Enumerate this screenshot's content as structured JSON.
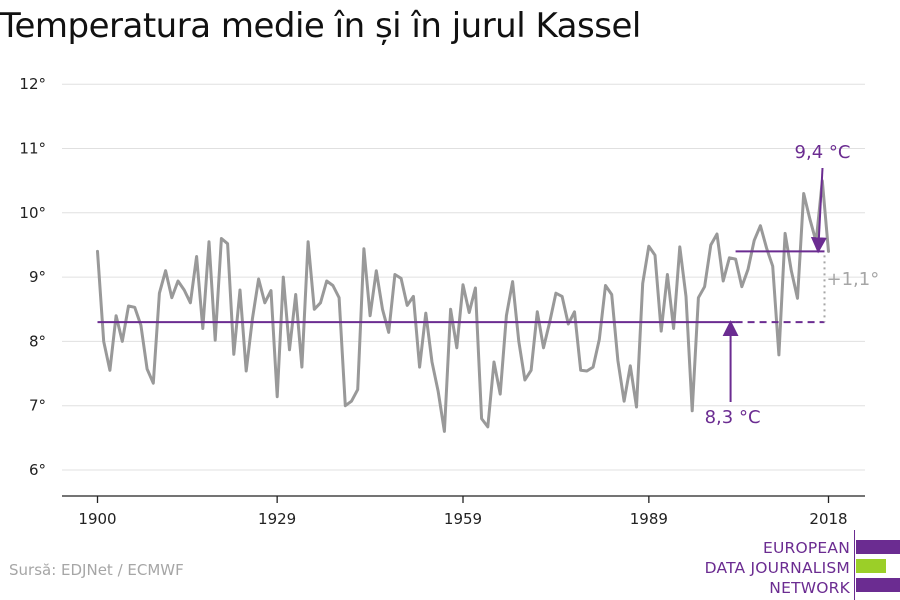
{
  "title": "Temperatura medie în și în jurul Kassel",
  "source": "Sursă: EDJNet / ECMWF",
  "logo": {
    "lines": [
      "EUROPEAN",
      "DATA JOURNALISM",
      "NETWORK"
    ]
  },
  "colors": {
    "series": "#999999",
    "accent": "#6b2c91",
    "diff": "#a6a6a6",
    "grid": "#e0e0e0",
    "logo_purple": "#6b2c91",
    "logo_green": "#9bcf28"
  },
  "chart_data": {
    "type": "line",
    "title": "Temperatura medie în și în jurul Kassel",
    "xlabel": "",
    "ylabel": "",
    "xlim": [
      1900,
      2018
    ],
    "ylim": [
      6,
      12
    ],
    "x_ticks": [
      1900,
      1929,
      1959,
      1989,
      2018
    ],
    "y_ticks": [
      {
        "value": 6,
        "label": "6°"
      },
      {
        "value": 7,
        "label": "7°"
      },
      {
        "value": 8,
        "label": "8°"
      },
      {
        "value": 9,
        "label": "9°"
      },
      {
        "value": 10,
        "label": "10°"
      },
      {
        "value": 11,
        "label": "11°"
      },
      {
        "value": 12,
        "label": "12°"
      }
    ],
    "grid": "horizontal",
    "x": [
      1900,
      1901,
      1902,
      1903,
      1904,
      1905,
      1906,
      1907,
      1908,
      1909,
      1910,
      1911,
      1912,
      1913,
      1914,
      1915,
      1916,
      1917,
      1918,
      1919,
      1920,
      1921,
      1922,
      1923,
      1924,
      1925,
      1926,
      1927,
      1928,
      1929,
      1930,
      1931,
      1932,
      1933,
      1934,
      1935,
      1936,
      1937,
      1938,
      1939,
      1940,
      1941,
      1942,
      1943,
      1944,
      1945,
      1946,
      1947,
      1948,
      1949,
      1950,
      1951,
      1952,
      1953,
      1954,
      1955,
      1956,
      1957,
      1958,
      1959,
      1960,
      1961,
      1962,
      1963,
      1964,
      1965,
      1966,
      1967,
      1968,
      1969,
      1970,
      1971,
      1972,
      1973,
      1974,
      1975,
      1976,
      1977,
      1978,
      1979,
      1980,
      1981,
      1982,
      1983,
      1984,
      1985,
      1986,
      1987,
      1988,
      1989,
      1990,
      1991,
      1992,
      1993,
      1994,
      1995,
      1996,
      1997,
      1998,
      1999,
      2000,
      2001,
      2002,
      2003,
      2004,
      2005,
      2006,
      2007,
      2008,
      2009,
      2010,
      2011,
      2012,
      2013,
      2014,
      2015,
      2016,
      2017,
      2018
    ],
    "values": [
      9.4,
      8.0,
      7.55,
      8.4,
      8.0,
      8.55,
      8.53,
      8.25,
      7.57,
      7.35,
      8.75,
      9.1,
      8.68,
      8.94,
      8.8,
      8.6,
      9.32,
      8.2,
      9.55,
      8.02,
      9.6,
      9.52,
      7.8,
      8.8,
      7.54,
      8.35,
      8.97,
      8.6,
      8.79,
      7.14,
      9.0,
      7.87,
      8.73,
      7.6,
      9.55,
      8.5,
      8.6,
      8.94,
      8.87,
      8.68,
      7.0,
      7.07,
      7.25,
      9.44,
      8.4,
      9.1,
      8.5,
      8.14,
      9.04,
      8.98,
      8.56,
      8.7,
      7.6,
      8.44,
      7.68,
      7.22,
      6.6,
      8.5,
      7.9,
      8.88,
      8.45,
      8.83,
      6.8,
      6.67,
      7.68,
      7.18,
      8.4,
      8.93,
      8.0,
      7.4,
      7.55,
      8.46,
      7.9,
      8.3,
      8.75,
      8.7,
      8.27,
      8.46,
      7.55,
      7.54,
      7.6,
      8.03,
      8.87,
      8.73,
      7.7,
      7.07,
      7.62,
      6.98,
      8.9,
      9.48,
      9.34,
      8.16,
      9.04,
      8.2,
      9.47,
      8.7,
      6.92,
      8.68,
      8.85,
      9.5,
      9.67,
      8.94,
      9.3,
      9.28,
      8.85,
      9.12,
      9.57,
      9.8,
      9.45,
      9.17,
      7.79,
      9.68,
      9.1,
      8.67,
      10.3,
      9.9,
      9.55,
      10.5,
      9.4
    ],
    "series": [
      {
        "name": "",
        "kind": "annual mean"
      }
    ],
    "annotations": {
      "baseline": {
        "value": 8.3,
        "label": "8,3 °C",
        "x_from": 1900,
        "x_to": 2018,
        "solid_to": 2003
      },
      "recent": {
        "value": 9.4,
        "label": "9,4 °C",
        "x_from": 2003,
        "x_to": 2018
      },
      "difference": {
        "label": "+1,1°"
      }
    }
  }
}
